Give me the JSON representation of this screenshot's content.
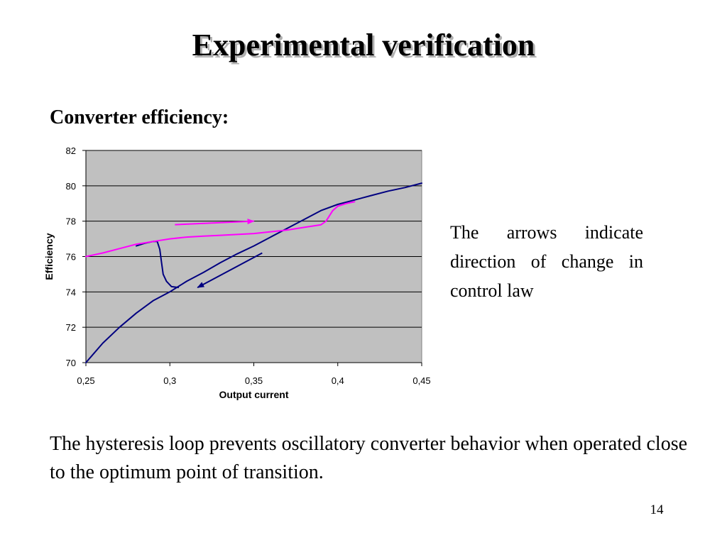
{
  "slide": {
    "title": "Experimental verification",
    "heading": "Converter efficiency:",
    "note": "The arrows indicate direction of change in control law",
    "caption": "The hysteresis loop prevents oscillatory converter behavior when operated close to the optimum point of transition.",
    "page_number": "14"
  },
  "chart_data": {
    "type": "line",
    "xlabel": "Output current",
    "ylabel": "Efficiency",
    "xlim": [
      0.25,
      0.45
    ],
    "ylim": [
      70,
      82
    ],
    "x_ticks": [
      0.25,
      0.3,
      0.35,
      0.4,
      0.45
    ],
    "x_tick_labels": [
      "0,25",
      "0,3",
      "0,35",
      "0,4",
      "0,45"
    ],
    "y_ticks": [
      70,
      72,
      74,
      76,
      78,
      80,
      82
    ],
    "y_tick_labels": [
      "70",
      "72",
      "74",
      "76",
      "78",
      "80",
      "82"
    ],
    "grid": "horizontal",
    "plot_background": "#c0c0c0",
    "series": [
      {
        "color": "#000080",
        "points": [
          [
            0.25,
            70.0
          ],
          [
            0.26,
            71.1
          ],
          [
            0.27,
            72.0
          ],
          [
            0.28,
            72.8
          ],
          [
            0.29,
            73.5
          ],
          [
            0.3,
            74.0
          ],
          [
            0.31,
            74.6
          ],
          [
            0.32,
            75.1
          ],
          [
            0.33,
            75.65
          ],
          [
            0.34,
            76.15
          ],
          [
            0.35,
            76.6
          ],
          [
            0.36,
            77.1
          ],
          [
            0.37,
            77.6
          ],
          [
            0.38,
            78.1
          ],
          [
            0.39,
            78.6
          ],
          [
            0.4,
            78.95
          ],
          [
            0.41,
            79.2
          ],
          [
            0.42,
            79.45
          ],
          [
            0.43,
            79.7
          ],
          [
            0.44,
            79.9
          ],
          [
            0.45,
            80.15
          ]
        ]
      },
      {
        "color": "#000080",
        "points": [
          [
            0.28,
            76.6
          ],
          [
            0.285,
            76.75
          ],
          [
            0.29,
            76.85
          ],
          [
            0.2925,
            76.85
          ],
          [
            0.294,
            76.4
          ],
          [
            0.295,
            75.7
          ],
          [
            0.296,
            75.0
          ],
          [
            0.298,
            74.6
          ],
          [
            0.301,
            74.3
          ],
          [
            0.305,
            74.25
          ]
        ]
      },
      {
        "color": "#ff00ff",
        "points": [
          [
            0.25,
            76.0
          ],
          [
            0.26,
            76.2
          ],
          [
            0.27,
            76.45
          ],
          [
            0.28,
            76.7
          ],
          [
            0.29,
            76.85
          ],
          [
            0.3,
            77.0
          ],
          [
            0.31,
            77.1
          ],
          [
            0.32,
            77.15
          ],
          [
            0.33,
            77.2
          ],
          [
            0.34,
            77.25
          ],
          [
            0.35,
            77.3
          ],
          [
            0.36,
            77.4
          ],
          [
            0.37,
            77.5
          ],
          [
            0.38,
            77.65
          ],
          [
            0.39,
            77.8
          ],
          [
            0.393,
            78.0
          ],
          [
            0.397,
            78.6
          ],
          [
            0.4,
            78.85
          ],
          [
            0.405,
            79.0
          ],
          [
            0.41,
            79.1
          ]
        ]
      }
    ],
    "annotations": [
      {
        "type": "arrow",
        "color": "#ff00ff",
        "from": [
          0.303,
          77.8
        ],
        "to": [
          0.35,
          78.0
        ]
      },
      {
        "type": "arrow",
        "color": "#000080",
        "from": [
          0.355,
          76.2
        ],
        "to": [
          0.3165,
          74.25
        ]
      }
    ]
  }
}
